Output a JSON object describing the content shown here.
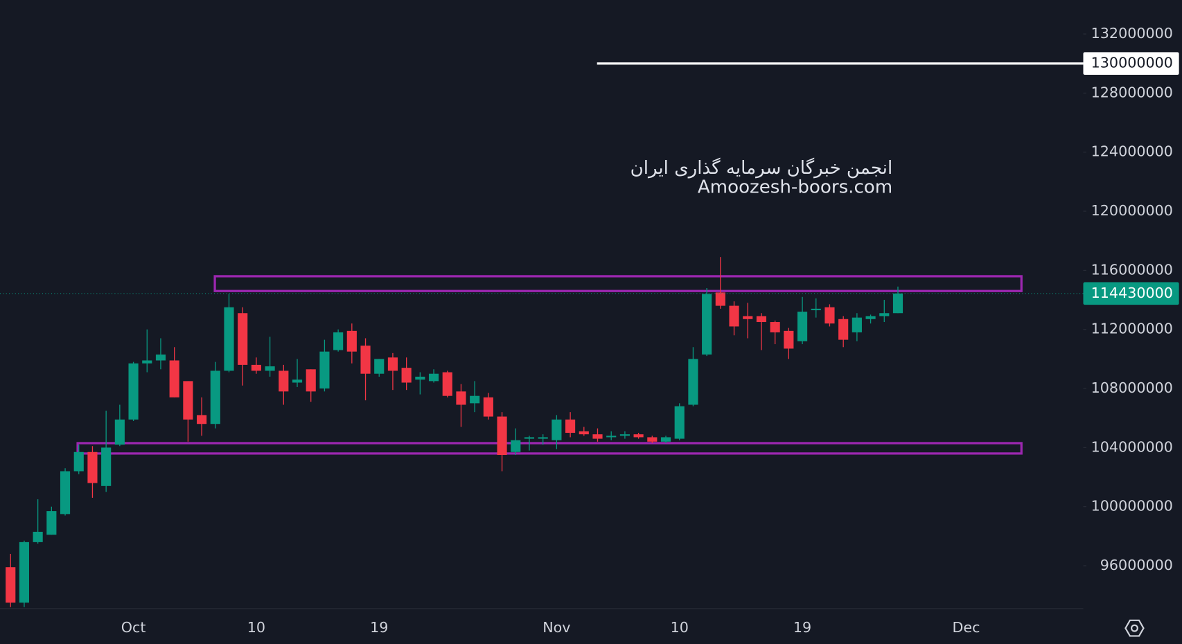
{
  "chart_data": {
    "type": "candlestick",
    "watermark": [
      "انجمن خبرگان سرمایه گذاری ایران",
      "Amoozesh-boors.com"
    ],
    "categories": [
      null,
      null,
      null,
      null,
      null,
      null,
      null,
      null,
      null,
      "Oct",
      null,
      null,
      null,
      null,
      null,
      null,
      null,
      null,
      "10",
      null,
      null,
      null,
      null,
      null,
      null,
      null,
      null,
      "19",
      null,
      null,
      null,
      null,
      null,
      null,
      null,
      null,
      null,
      null,
      null,
      null,
      "Nov",
      null,
      null,
      null,
      null,
      null,
      null,
      null,
      null,
      "10",
      null,
      null,
      null,
      null,
      null,
      null,
      null,
      null,
      "19",
      null,
      null,
      null,
      null,
      null,
      null,
      null,
      null,
      null,
      null,
      null,
      "Dec",
      null,
      null,
      null,
      null,
      null,
      null,
      null,
      null
    ],
    "open": [
      95900000,
      93500000,
      97600000,
      98100000,
      99500000,
      102400000,
      103700000,
      101400000,
      104200000,
      105900000,
      109700000,
      109900000,
      109900000,
      108500000,
      106200000,
      105600000,
      109200000,
      113100000,
      109600000,
      109200000,
      109200000,
      108400000,
      109300000,
      108000000,
      110600000,
      111900000,
      110900000,
      109000000,
      110100000,
      109400000,
      108600000,
      108500000,
      109100000,
      107800000,
      107000000,
      107400000,
      106100000,
      103700000,
      104600000,
      104600000,
      104500000,
      105900000,
      105100000,
      104900000,
      104700000,
      104800000,
      104900000,
      104700000,
      104400000,
      104600000,
      106900000,
      110300000,
      114500000,
      113600000,
      112900000,
      112900000,
      112500000,
      111900000,
      111200000,
      113300000,
      113500000,
      112700000,
      111800000,
      112700000,
      112900000,
      113100000,
      null,
      null,
      null,
      null,
      null,
      null,
      null,
      null,
      null,
      null,
      null,
      null,
      null
    ],
    "high": [
      96800000,
      97700000,
      100500000,
      100000000,
      102600000,
      104200000,
      104100000,
      106500000,
      106900000,
      109800000,
      112000000,
      111400000,
      110800000,
      108500000,
      107400000,
      109800000,
      114400000,
      113500000,
      110100000,
      111500000,
      109600000,
      110000000,
      109300000,
      111300000,
      112000000,
      112400000,
      111400000,
      110000000,
      110400000,
      110100000,
      109100000,
      109300000,
      109200000,
      108300000,
      108500000,
      107700000,
      106400000,
      105300000,
      104800000,
      104900000,
      106200000,
      106400000,
      105400000,
      105300000,
      105100000,
      105100000,
      105000000,
      104800000,
      104800000,
      107000000,
      110800000,
      114800000,
      116900000,
      113900000,
      113800000,
      113100000,
      112600000,
      112100000,
      114200000,
      114100000,
      113700000,
      112900000,
      113100000,
      113000000,
      114000000,
      114900000,
      null,
      null,
      null,
      null,
      null,
      null,
      null,
      null,
      null,
      null,
      null,
      null,
      null
    ],
    "low": [
      93200000,
      93200000,
      97500000,
      98100000,
      99400000,
      102200000,
      100600000,
      101000000,
      104100000,
      105800000,
      109100000,
      109300000,
      107400000,
      104400000,
      104800000,
      105300000,
      109100000,
      108200000,
      109000000,
      108800000,
      106900000,
      108100000,
      107100000,
      107800000,
      110500000,
      109700000,
      107200000,
      108800000,
      107900000,
      107900000,
      107600000,
      108400000,
      107400000,
      105400000,
      106400000,
      105900000,
      102400000,
      103500000,
      103800000,
      104200000,
      103900000,
      104700000,
      104800000,
      104400000,
      104500000,
      104600000,
      104600000,
      104300000,
      104300000,
      104500000,
      106800000,
      110200000,
      113400000,
      111600000,
      111400000,
      110600000,
      111000000,
      110000000,
      111000000,
      112800000,
      112200000,
      110800000,
      111200000,
      112400000,
      112500000,
      113100000,
      null,
      null,
      null,
      null,
      null,
      null,
      null,
      null,
      null,
      null,
      null,
      null,
      null
    ],
    "close": [
      93500000,
      97600000,
      98300000,
      99700000,
      102400000,
      103700000,
      101600000,
      104000000,
      105900000,
      109700000,
      109900000,
      110300000,
      107400000,
      105900000,
      105600000,
      109200000,
      113500000,
      109600000,
      109200000,
      109500000,
      107800000,
      108600000,
      107800000,
      110500000,
      111800000,
      110500000,
      109000000,
      110000000,
      109200000,
      108400000,
      108800000,
      109000000,
      107500000,
      106900000,
      107500000,
      106100000,
      103500000,
      104500000,
      104700000,
      104700000,
      105900000,
      105000000,
      104900000,
      104600000,
      104800000,
      104900000,
      104700000,
      104400000,
      104700000,
      106800000,
      110000000,
      114400000,
      113600000,
      112200000,
      112700000,
      112500000,
      111800000,
      110700000,
      113200000,
      113400000,
      112400000,
      111300000,
      112800000,
      112900000,
      113100000,
      114430000,
      null,
      null,
      null,
      null,
      null,
      null,
      null,
      null,
      null,
      null,
      null,
      null,
      null
    ],
    "up_color": "#089981",
    "down_color": "#f23645",
    "ylim": [
      93100000,
      134300000
    ],
    "yticks": [
      96000000,
      100000000,
      104000000,
      108000000,
      112000000,
      116000000,
      120000000,
      124000000,
      128000000,
      132000000
    ],
    "hline": {
      "value": 130000000,
      "color": "#ffffff"
    },
    "zones": [
      {
        "high": 115600000,
        "low": 114600000,
        "color": "#9c27b0"
      },
      {
        "high": 104300000,
        "low": 103600000,
        "color": "#9c27b0"
      }
    ]
  }
}
